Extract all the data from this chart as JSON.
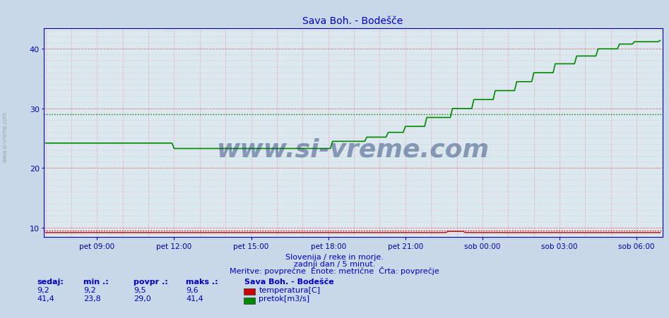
{
  "title": "Sava Boh. - Bodešče",
  "title_color": "#0000cc",
  "bg_color": "#c8d8e8",
  "plot_bg_color": "#dce8f0",
  "grid_color": "#e08080",
  "ylabel": "",
  "xlabel": "",
  "ylim_min": 8.5,
  "ylim_max": 43.5,
  "yticks": [
    10,
    20,
    30,
    40
  ],
  "xtick_labels": [
    "pet 09:00",
    "pet 12:00",
    "pet 15:00",
    "pet 18:00",
    "pet 21:00",
    "sob 00:00",
    "sob 03:00",
    "sob 06:00"
  ],
  "temp_color": "#cc0000",
  "flow_color": "#008800",
  "avg_temp": 9.5,
  "avg_flow": 29.0,
  "temp_sedaj": "9,2",
  "temp_min": "9,2",
  "temp_povpr": "9,5",
  "temp_maks": "9,6",
  "flow_sedaj": "41,4",
  "flow_min": "23,8",
  "flow_povpr": "29,0",
  "flow_maks": "41,4",
  "footer_line1": "Slovenija / reke in morje.",
  "footer_line2": "zadnji dan / 5 minut.",
  "footer_line3": "Meritve: povprečne  Enote: metrične  Črta: povprečje",
  "footer_color": "#0000cc",
  "legend_title": "Sava Boh. - Bodešče",
  "legend_temp_label": "temperatura[C]",
  "legend_flow_label": "pretok[m3/s]",
  "stats_col0_hdr": "sedaj:",
  "stats_col1_hdr": "min .:",
  "stats_col2_hdr": "povpr .:",
  "stats_col3_hdr": "maks .:",
  "watermark": "www.si-vreme.com",
  "watermark_color": "#1a3a6e",
  "n_points": 288,
  "spine_color": "#0000aa"
}
